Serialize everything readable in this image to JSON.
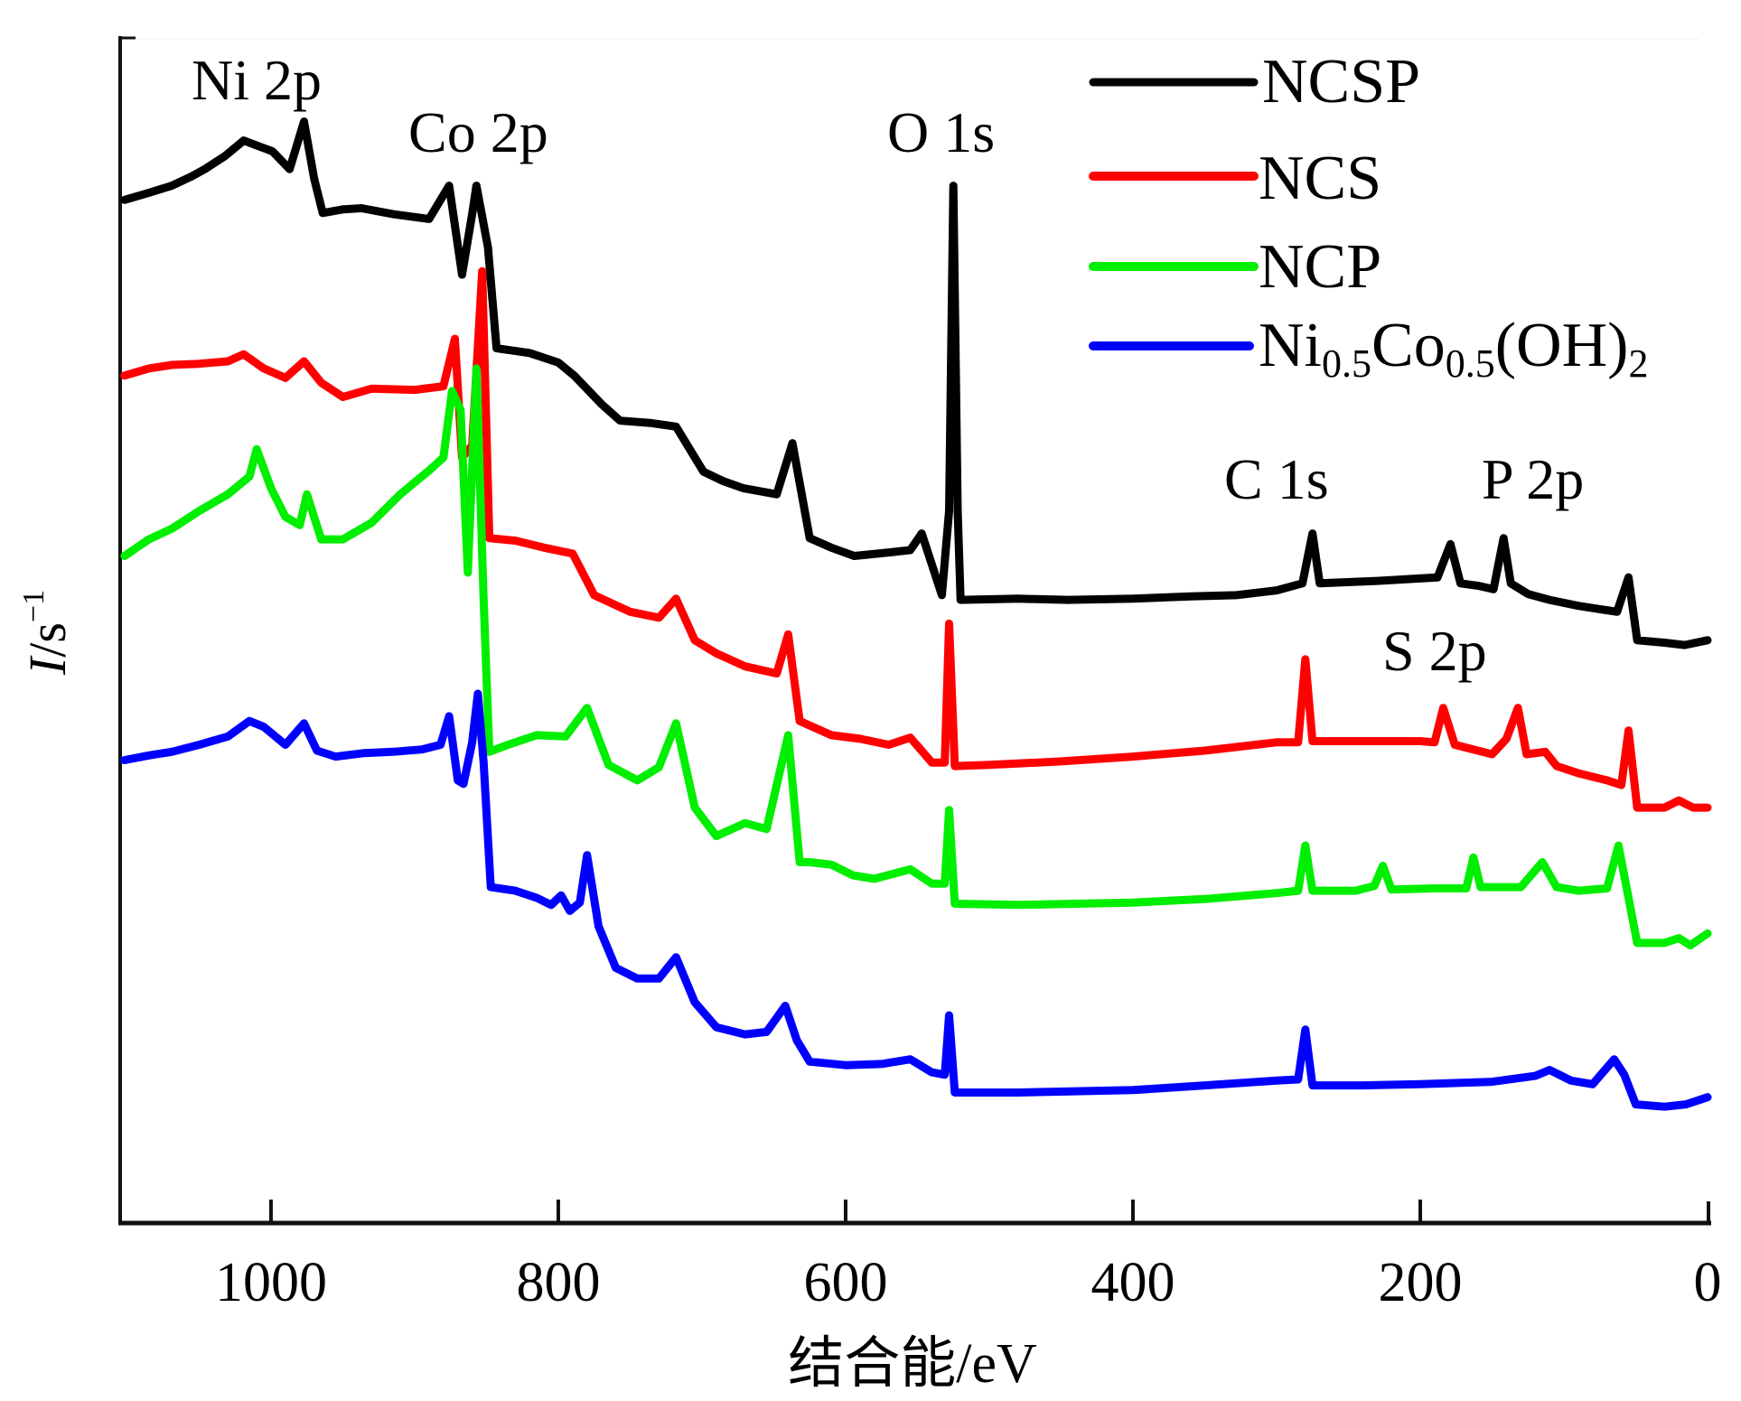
{
  "chart_data": {
    "type": "line",
    "title": "",
    "xlabel": "结合能/eV",
    "ylabel_main": "I",
    "ylabel_unit": "/s",
    "ylabel_exp": "−1",
    "xlim": [
      1105,
      0
    ],
    "x_reversed": true,
    "ylim": [
      0,
      100
    ],
    "y_units": "arbitrary (relative intensity, offset stacked)",
    "x_ticks": [
      1000,
      800,
      600,
      400,
      200,
      0
    ],
    "x_tick_labels": [
      "1000",
      "800",
      "600",
      "400",
      "200",
      "0"
    ],
    "y_ticks": [],
    "grid": false,
    "legend": {
      "position": "top-right",
      "entries": [
        {
          "label": "NCSP",
          "color": "#000000"
        },
        {
          "label": "NCS",
          "color": "#ff0000"
        },
        {
          "label": "NCP",
          "color": "#00ee00"
        },
        {
          "label_parts": [
            {
              "text": "Ni",
              "sub": false
            },
            {
              "text": "0.5",
              "sub": true
            },
            {
              "text": "Co",
              "sub": false
            },
            {
              "text": "0.5",
              "sub": true
            },
            {
              "text": "(OH)",
              "sub": false
            },
            {
              "text": "2",
              "sub": true
            }
          ],
          "label": "Ni0.5Co0.5(OH)2",
          "color": "#0000ff"
        }
      ]
    },
    "annotations": [
      {
        "text": "Ni 2p",
        "x": 1010,
        "y": 96
      },
      {
        "text": "Co 2p",
        "x": 835,
        "y": 92
      },
      {
        "text": "O 1s",
        "x": 520,
        "y": 92
      },
      {
        "text": "C 1s",
        "x": 290,
        "y": 62
      },
      {
        "text": "P 2p",
        "x": 110,
        "y": 62
      },
      {
        "text": "S 2p",
        "x": 185,
        "y": 46
      }
    ],
    "series": [
      {
        "name": "NCSP",
        "color": "#000000",
        "points": [
          [
            1102,
            86.2
          ],
          [
            1085,
            86.8
          ],
          [
            1069,
            87.4
          ],
          [
            1055,
            88.2
          ],
          [
            1046,
            88.8
          ],
          [
            1032,
            89.9
          ],
          [
            1019,
            91.2
          ],
          [
            1008,
            90.7
          ],
          [
            999,
            90.3
          ],
          [
            987,
            88.8
          ],
          [
            977,
            92.8
          ],
          [
            970,
            88.0
          ],
          [
            964,
            85.1
          ],
          [
            950,
            85.4
          ],
          [
            937,
            85.5
          ],
          [
            915,
            85.0
          ],
          [
            890,
            84.6
          ],
          [
            876,
            87.4
          ],
          [
            867,
            79.9
          ],
          [
            860,
            85.0
          ],
          [
            857,
            87.4
          ],
          [
            849,
            82.2
          ],
          [
            843,
            73.7
          ],
          [
            820,
            73.3
          ],
          [
            800,
            72.5
          ],
          [
            789,
            71.4
          ],
          [
            770,
            69.0
          ],
          [
            757,
            67.6
          ],
          [
            735,
            67.4
          ],
          [
            718,
            67.1
          ],
          [
            699,
            63.3
          ],
          [
            685,
            62.5
          ],
          [
            671,
            61.9
          ],
          [
            648,
            61.4
          ],
          [
            637,
            65.7
          ],
          [
            625,
            57.7
          ],
          [
            610,
            56.9
          ],
          [
            594,
            56.2
          ],
          [
            570,
            56.5
          ],
          [
            555,
            56.7
          ],
          [
            547,
            58.1
          ],
          [
            533,
            52.9
          ],
          [
            528,
            60.0
          ],
          [
            525,
            87.4
          ],
          [
            522,
            60.0
          ],
          [
            520,
            52.5
          ],
          [
            480,
            52.6
          ],
          [
            445,
            52.5
          ],
          [
            400,
            52.6
          ],
          [
            360,
            52.8
          ],
          [
            328,
            52.9
          ],
          [
            300,
            53.3
          ],
          [
            282,
            53.9
          ],
          [
            275,
            58.1
          ],
          [
            270,
            53.9
          ],
          [
            230,
            54.1
          ],
          [
            188,
            54.4
          ],
          [
            179,
            57.2
          ],
          [
            172,
            53.9
          ],
          [
            160,
            53.7
          ],
          [
            149,
            53.4
          ],
          [
            142,
            57.7
          ],
          [
            137,
            53.9
          ],
          [
            125,
            53.0
          ],
          [
            110,
            52.5
          ],
          [
            90,
            52.0
          ],
          [
            63,
            51.5
          ],
          [
            55,
            54.4
          ],
          [
            49,
            49.1
          ],
          [
            30,
            48.9
          ],
          [
            16,
            48.7
          ],
          [
            0,
            49.1
          ]
        ]
      },
      {
        "name": "NCS",
        "color": "#ff0000",
        "points": [
          [
            1102,
            71.4
          ],
          [
            1085,
            72.0
          ],
          [
            1069,
            72.3
          ],
          [
            1050,
            72.4
          ],
          [
            1030,
            72.6
          ],
          [
            1019,
            73.2
          ],
          [
            1005,
            72.0
          ],
          [
            990,
            71.2
          ],
          [
            977,
            72.6
          ],
          [
            965,
            70.8
          ],
          [
            950,
            69.6
          ],
          [
            930,
            70.3
          ],
          [
            900,
            70.2
          ],
          [
            880,
            70.5
          ],
          [
            872,
            74.5
          ],
          [
            867,
            64.5
          ],
          [
            860,
            65.5
          ],
          [
            853,
            80.2
          ],
          [
            848,
            57.7
          ],
          [
            830,
            57.5
          ],
          [
            810,
            56.9
          ],
          [
            790,
            56.4
          ],
          [
            775,
            52.9
          ],
          [
            750,
            51.5
          ],
          [
            730,
            51.0
          ],
          [
            718,
            52.6
          ],
          [
            705,
            49.1
          ],
          [
            690,
            48.0
          ],
          [
            670,
            46.9
          ],
          [
            648,
            46.3
          ],
          [
            640,
            49.6
          ],
          [
            632,
            42.3
          ],
          [
            610,
            41.1
          ],
          [
            590,
            40.8
          ],
          [
            570,
            40.3
          ],
          [
            555,
            40.9
          ],
          [
            540,
            38.8
          ],
          [
            531,
            38.8
          ],
          [
            528,
            50.5
          ],
          [
            524,
            38.5
          ],
          [
            500,
            38.6
          ],
          [
            450,
            38.9
          ],
          [
            400,
            39.3
          ],
          [
            350,
            39.8
          ],
          [
            300,
            40.5
          ],
          [
            285,
            40.5
          ],
          [
            280,
            47.5
          ],
          [
            275,
            40.6
          ],
          [
            240,
            40.6
          ],
          [
            200,
            40.6
          ],
          [
            190,
            40.5
          ],
          [
            184,
            43.4
          ],
          [
            176,
            40.3
          ],
          [
            150,
            39.5
          ],
          [
            140,
            40.8
          ],
          [
            132,
            43.4
          ],
          [
            126,
            39.5
          ],
          [
            113,
            39.7
          ],
          [
            105,
            38.5
          ],
          [
            90,
            37.9
          ],
          [
            70,
            37.3
          ],
          [
            60,
            36.9
          ],
          [
            55,
            41.5
          ],
          [
            49,
            35.0
          ],
          [
            30,
            35.0
          ],
          [
            20,
            35.6
          ],
          [
            10,
            35.0
          ],
          [
            0,
            35.0
          ]
        ]
      },
      {
        "name": "NCP",
        "color": "#00ee00",
        "points": [
          [
            1102,
            56.2
          ],
          [
            1085,
            57.6
          ],
          [
            1069,
            58.5
          ],
          [
            1050,
            60.0
          ],
          [
            1030,
            61.4
          ],
          [
            1015,
            62.9
          ],
          [
            1010,
            65.2
          ],
          [
            1000,
            61.9
          ],
          [
            990,
            59.5
          ],
          [
            980,
            58.8
          ],
          [
            975,
            61.4
          ],
          [
            965,
            57.6
          ],
          [
            950,
            57.6
          ],
          [
            930,
            59.0
          ],
          [
            910,
            61.4
          ],
          [
            890,
            63.4
          ],
          [
            880,
            64.5
          ],
          [
            874,
            70.1
          ],
          [
            868,
            68.5
          ],
          [
            863,
            54.8
          ],
          [
            857,
            72.0
          ],
          [
            852,
            52.5
          ],
          [
            848,
            39.7
          ],
          [
            835,
            40.3
          ],
          [
            815,
            41.1
          ],
          [
            795,
            41.0
          ],
          [
            780,
            43.4
          ],
          [
            765,
            38.6
          ],
          [
            745,
            37.3
          ],
          [
            730,
            38.4
          ],
          [
            718,
            42.1
          ],
          [
            705,
            35.0
          ],
          [
            690,
            32.6
          ],
          [
            670,
            33.7
          ],
          [
            655,
            33.2
          ],
          [
            640,
            41.1
          ],
          [
            632,
            30.4
          ],
          [
            625,
            30.4
          ],
          [
            610,
            30.2
          ],
          [
            595,
            29.3
          ],
          [
            580,
            29.0
          ],
          [
            555,
            29.8
          ],
          [
            540,
            28.6
          ],
          [
            531,
            28.6
          ],
          [
            528,
            34.8
          ],
          [
            524,
            26.9
          ],
          [
            480,
            26.8
          ],
          [
            440,
            26.9
          ],
          [
            400,
            27.0
          ],
          [
            350,
            27.3
          ],
          [
            300,
            27.8
          ],
          [
            285,
            28.0
          ],
          [
            280,
            31.8
          ],
          [
            275,
            28.0
          ],
          [
            245,
            28.0
          ],
          [
            232,
            28.4
          ],
          [
            226,
            30.1
          ],
          [
            220,
            28.1
          ],
          [
            190,
            28.2
          ],
          [
            168,
            28.2
          ],
          [
            163,
            30.8
          ],
          [
            158,
            28.3
          ],
          [
            130,
            28.3
          ],
          [
            115,
            30.4
          ],
          [
            105,
            28.3
          ],
          [
            90,
            28.0
          ],
          [
            70,
            28.2
          ],
          [
            62,
            31.8
          ],
          [
            56,
            28.0
          ],
          [
            49,
            23.6
          ],
          [
            30,
            23.6
          ],
          [
            20,
            24.0
          ],
          [
            12,
            23.4
          ],
          [
            0,
            24.4
          ]
        ]
      },
      {
        "name": "Ni0.5Co0.5(OH)2",
        "color": "#0000ff",
        "points": [
          [
            1102,
            39.0
          ],
          [
            1085,
            39.4
          ],
          [
            1069,
            39.7
          ],
          [
            1050,
            40.3
          ],
          [
            1030,
            41.0
          ],
          [
            1015,
            42.3
          ],
          [
            1005,
            41.8
          ],
          [
            990,
            40.3
          ],
          [
            977,
            42.1
          ],
          [
            968,
            39.8
          ],
          [
            955,
            39.3
          ],
          [
            935,
            39.6
          ],
          [
            915,
            39.7
          ],
          [
            895,
            39.9
          ],
          [
            882,
            40.3
          ],
          [
            876,
            42.7
          ],
          [
            870,
            37.3
          ],
          [
            866,
            37.0
          ],
          [
            860,
            40.5
          ],
          [
            856,
            44.6
          ],
          [
            852,
            38.8
          ],
          [
            847,
            28.3
          ],
          [
            830,
            28.0
          ],
          [
            815,
            27.4
          ],
          [
            805,
            26.8
          ],
          [
            798,
            27.6
          ],
          [
            792,
            26.3
          ],
          [
            785,
            27.0
          ],
          [
            780,
            31.0
          ],
          [
            772,
            25.0
          ],
          [
            760,
            21.5
          ],
          [
            745,
            20.6
          ],
          [
            730,
            20.6
          ],
          [
            718,
            22.4
          ],
          [
            705,
            18.6
          ],
          [
            690,
            16.5
          ],
          [
            670,
            15.9
          ],
          [
            655,
            16.1
          ],
          [
            642,
            18.3
          ],
          [
            634,
            15.4
          ],
          [
            625,
            13.6
          ],
          [
            600,
            13.3
          ],
          [
            575,
            13.4
          ],
          [
            555,
            13.8
          ],
          [
            540,
            12.7
          ],
          [
            531,
            12.5
          ],
          [
            528,
            17.5
          ],
          [
            524,
            11.0
          ],
          [
            480,
            11.0
          ],
          [
            440,
            11.1
          ],
          [
            400,
            11.2
          ],
          [
            350,
            11.6
          ],
          [
            300,
            12.0
          ],
          [
            285,
            12.1
          ],
          [
            280,
            16.3
          ],
          [
            275,
            11.6
          ],
          [
            240,
            11.6
          ],
          [
            200,
            11.7
          ],
          [
            150,
            11.9
          ],
          [
            120,
            12.4
          ],
          [
            110,
            12.9
          ],
          [
            95,
            12.0
          ],
          [
            80,
            11.7
          ],
          [
            65,
            13.8
          ],
          [
            58,
            12.5
          ],
          [
            50,
            10.0
          ],
          [
            30,
            9.8
          ],
          [
            15,
            10.0
          ],
          [
            0,
            10.6
          ]
        ]
      }
    ]
  }
}
